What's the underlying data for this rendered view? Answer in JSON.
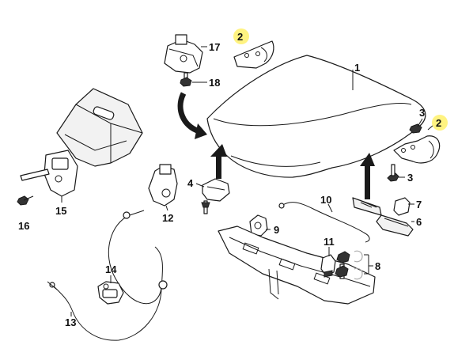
{
  "callouts": [
    {
      "id": "c1",
      "text": "1",
      "highlighted": false
    },
    {
      "id": "c2a",
      "text": "2",
      "highlighted": true
    },
    {
      "id": "c2b",
      "text": "2",
      "highlighted": true
    },
    {
      "id": "c3a",
      "text": "3",
      "highlighted": false
    },
    {
      "id": "c3b",
      "text": "3",
      "highlighted": false
    },
    {
      "id": "c4",
      "text": "4",
      "highlighted": false
    },
    {
      "id": "c6",
      "text": "6",
      "highlighted": false
    },
    {
      "id": "c7",
      "text": "7",
      "highlighted": false
    },
    {
      "id": "c8",
      "text": "8",
      "highlighted": false
    },
    {
      "id": "c9",
      "text": "9",
      "highlighted": false
    },
    {
      "id": "c10",
      "text": "10",
      "highlighted": false
    },
    {
      "id": "c11",
      "text": "11",
      "highlighted": false
    },
    {
      "id": "c12",
      "text": "12",
      "highlighted": false
    },
    {
      "id": "c13",
      "text": "13",
      "highlighted": false
    },
    {
      "id": "c14",
      "text": "14",
      "highlighted": false
    },
    {
      "id": "c15",
      "text": "15",
      "highlighted": false
    },
    {
      "id": "c16",
      "text": "16",
      "highlighted": false
    },
    {
      "id": "c17",
      "text": "17",
      "highlighted": false
    },
    {
      "id": "c18",
      "text": "18",
      "highlighted": false
    }
  ],
  "colors": {
    "line": "#1a1a1a",
    "highlight": "#fff27a",
    "background": "#ffffff"
  }
}
